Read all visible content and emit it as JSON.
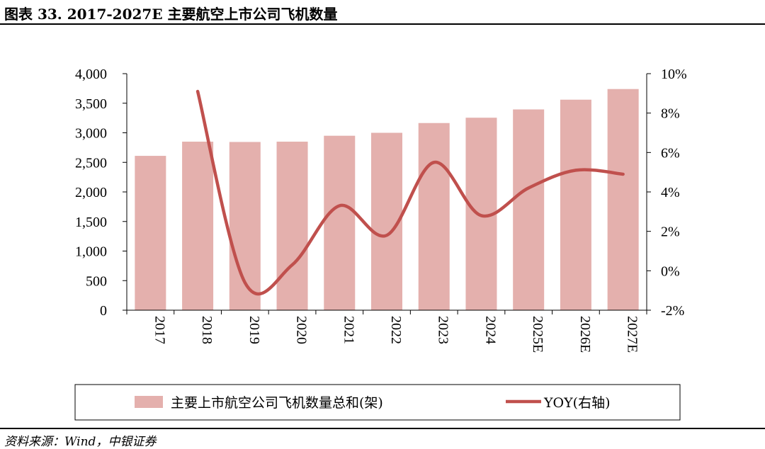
{
  "header": {
    "title": "图表 33.   2017-2027E 主要航空上市公司飞机数量"
  },
  "footer": {
    "source": "资料来源：Wind，中银证券"
  },
  "colors": {
    "bar": "#e4b0ad",
    "line": "#c0504d",
    "axis": "#000000",
    "plot_bg": "#ffffff"
  },
  "chart_data": {
    "type": "bar",
    "categories": [
      "2017",
      "2018",
      "2019",
      "2020",
      "2021",
      "2022",
      "2023",
      "2024",
      "2025E",
      "2026E",
      "2027E"
    ],
    "series": [
      {
        "name": "主要上市航空公司飞机数量总和(架)",
        "type": "bar",
        "axis": "left",
        "values": [
          2610,
          2850,
          2845,
          2850,
          2950,
          3000,
          3165,
          3255,
          3395,
          3560,
          3740
        ]
      },
      {
        "name": "YOY(右轴)",
        "type": "line",
        "axis": "right",
        "values": [
          null,
          9.1,
          -0.6,
          0.3,
          3.3,
          1.8,
          5.5,
          2.8,
          4.2,
          5.1,
          4.9
        ]
      }
    ],
    "y_left": {
      "min": 0,
      "max": 4000,
      "ticks": [
        "0",
        "500",
        "1,000",
        "1,500",
        "2,000",
        "2,500",
        "3,000",
        "3,500",
        "4,000"
      ]
    },
    "y_right": {
      "min": -2,
      "max": 10,
      "ticks": [
        "-2%",
        "0%",
        "2%",
        "4%",
        "6%",
        "8%",
        "10%"
      ]
    },
    "legend_position": "bottom",
    "grid": false
  }
}
